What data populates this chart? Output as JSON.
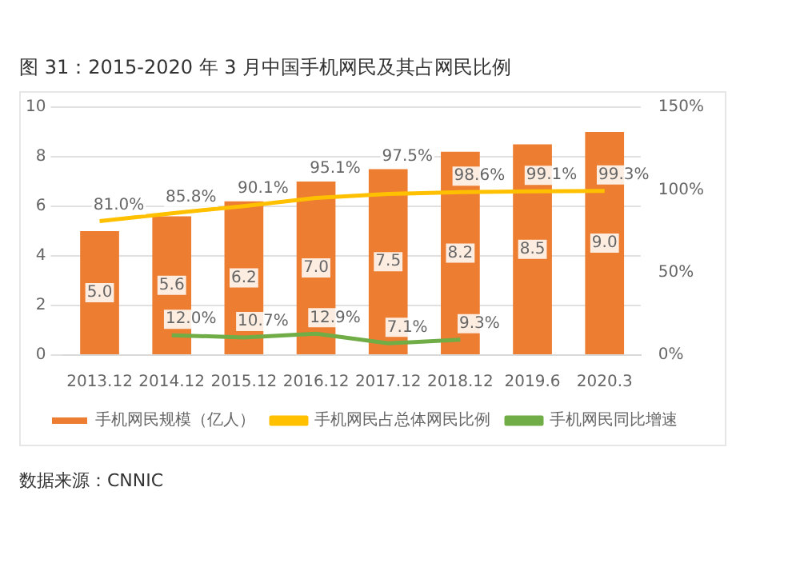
{
  "chart_data": {
    "type": "bar",
    "title": "图 31：2015-2020 年 3 月中国手机网民及其占网民比例",
    "categories": [
      "2013.12",
      "2014.12",
      "2015.12",
      "2016.12",
      "2017.12",
      "2018.12",
      "2019.6",
      "2020.3"
    ],
    "series": [
      {
        "name": "手机网民规模（亿人）",
        "color": "#ed7d31",
        "values": [
          5.0,
          5.6,
          6.2,
          7.0,
          7.5,
          8.2,
          8.5,
          9.0
        ],
        "value_labels": [
          "5.0",
          "5.6",
          "6.2",
          "7.0",
          "7.5",
          "8.2",
          "8.5",
          "9.0"
        ]
      },
      {
        "name": "手机网民占总体网民比例",
        "type": "line",
        "axis": "y2",
        "color": "#ffc000",
        "values": [
          81.0,
          85.8,
          90.1,
          95.1,
          97.5,
          98.6,
          99.1,
          99.3
        ],
        "value_labels": [
          "81.0%",
          "85.8%",
          "90.1%",
          "95.1%",
          "97.5%",
          "98.6%",
          "99.1%",
          "99.3%"
        ]
      },
      {
        "name": "手机网民同比增速",
        "type": "line",
        "axis": "y2",
        "color": "#70ad47",
        "values": [
          null,
          12.0,
          10.7,
          12.9,
          7.1,
          9.3,
          null,
          null
        ],
        "value_labels": [
          null,
          "12.0%",
          "10.7%",
          "12.9%",
          "7.1%",
          "9.3%",
          null,
          null
        ]
      }
    ],
    "ylim": [
      0,
      10
    ],
    "yticks": [
      0,
      2,
      4,
      6,
      8,
      10
    ],
    "y2lim": [
      0,
      150
    ],
    "y2ticks": [
      {
        "value": 0,
        "label": "0%"
      },
      {
        "value": 50,
        "label": "50%"
      },
      {
        "value": 100,
        "label": "100%"
      },
      {
        "value": 150,
        "label": "150%"
      }
    ],
    "grid": "y",
    "legend": "bottom",
    "marker": "none",
    "annotations": [
      "数据来源：CNNIC"
    ]
  }
}
